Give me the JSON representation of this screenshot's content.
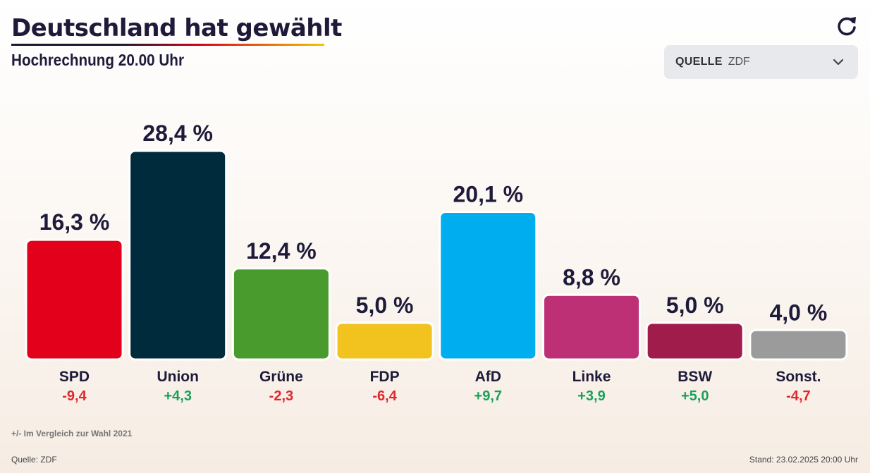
{
  "header": {
    "title": "Deutschland hat gewählt",
    "subtitle": "Hochrechnung 20.00 Uhr"
  },
  "controls": {
    "refresh_icon": "refresh-icon",
    "source_label": "QUELLE",
    "source_value": "ZDF",
    "chevron_icon": "chevron-down-icon"
  },
  "footer": {
    "note": "+/- Im Vergleich zur Wahl 2021",
    "source": "Quelle: ZDF",
    "stand": "Stand: 23.02.2025 20:00 Uhr"
  },
  "colors": {
    "positive": "#1aa05a",
    "negative": "#e0262b"
  },
  "chart_data": {
    "type": "bar",
    "title": "Deutschland hat gewählt",
    "subtitle": "Hochrechnung 20.00 Uhr",
    "categories": [
      "SPD",
      "Union",
      "Grüne",
      "FDP",
      "AfD",
      "Linke",
      "BSW",
      "Sonst."
    ],
    "values": [
      16.3,
      28.4,
      12.4,
      5.0,
      20.1,
      8.8,
      5.0,
      4.0
    ],
    "value_labels": [
      "16,3 %",
      "28,4 %",
      "12,4 %",
      "5,0 %",
      "20,1 %",
      "8,8 %",
      "5,0 %",
      "4,0 %"
    ],
    "diffs": [
      -9.4,
      4.3,
      -2.3,
      -6.4,
      9.7,
      3.9,
      5.0,
      -4.7
    ],
    "diff_labels": [
      "-9,4",
      "+4,3",
      "-2,3",
      "-6,4",
      "+9,7",
      "+3,9",
      "+5,0",
      "-4,7"
    ],
    "bar_colors": [
      "#e2001a",
      "#002b3c",
      "#4a9b2e",
      "#f2c31e",
      "#00aeef",
      "#be3075",
      "#a01c4b",
      "#9b9b9b"
    ],
    "ylim": [
      0,
      28.4
    ],
    "grid": false,
    "legend": "none"
  }
}
